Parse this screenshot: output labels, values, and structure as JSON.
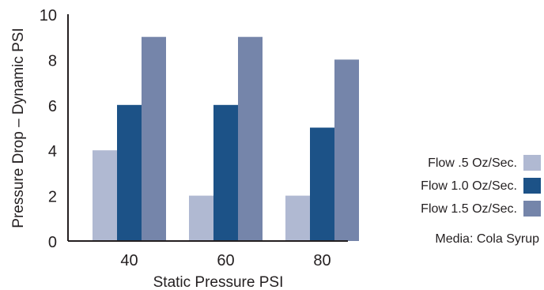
{
  "chart_data": {
    "type": "bar",
    "title": "",
    "xlabel": "Static Pressure PSI",
    "ylabel": "Pressure Drop – Dynamic PSI",
    "categories": [
      "40",
      "60",
      "80"
    ],
    "series": [
      {
        "name": "Flow .5 Oz/Sec.",
        "values": [
          4,
          2,
          2
        ],
        "color": "#b0b9d2"
      },
      {
        "name": "Flow 1.0 Oz/Sec.",
        "values": [
          6,
          6,
          5
        ],
        "color": "#1c5287"
      },
      {
        "name": "Flow 1.5 Oz/Sec.",
        "values": [
          9,
          9,
          8
        ],
        "color": "#7585aa"
      }
    ],
    "ylim": [
      0,
      10
    ],
    "yticks": [
      "0",
      "2",
      "4",
      "6",
      "8",
      "10"
    ],
    "grid": false,
    "legend_position": "right",
    "annotation": "Media: Cola Syrup"
  }
}
